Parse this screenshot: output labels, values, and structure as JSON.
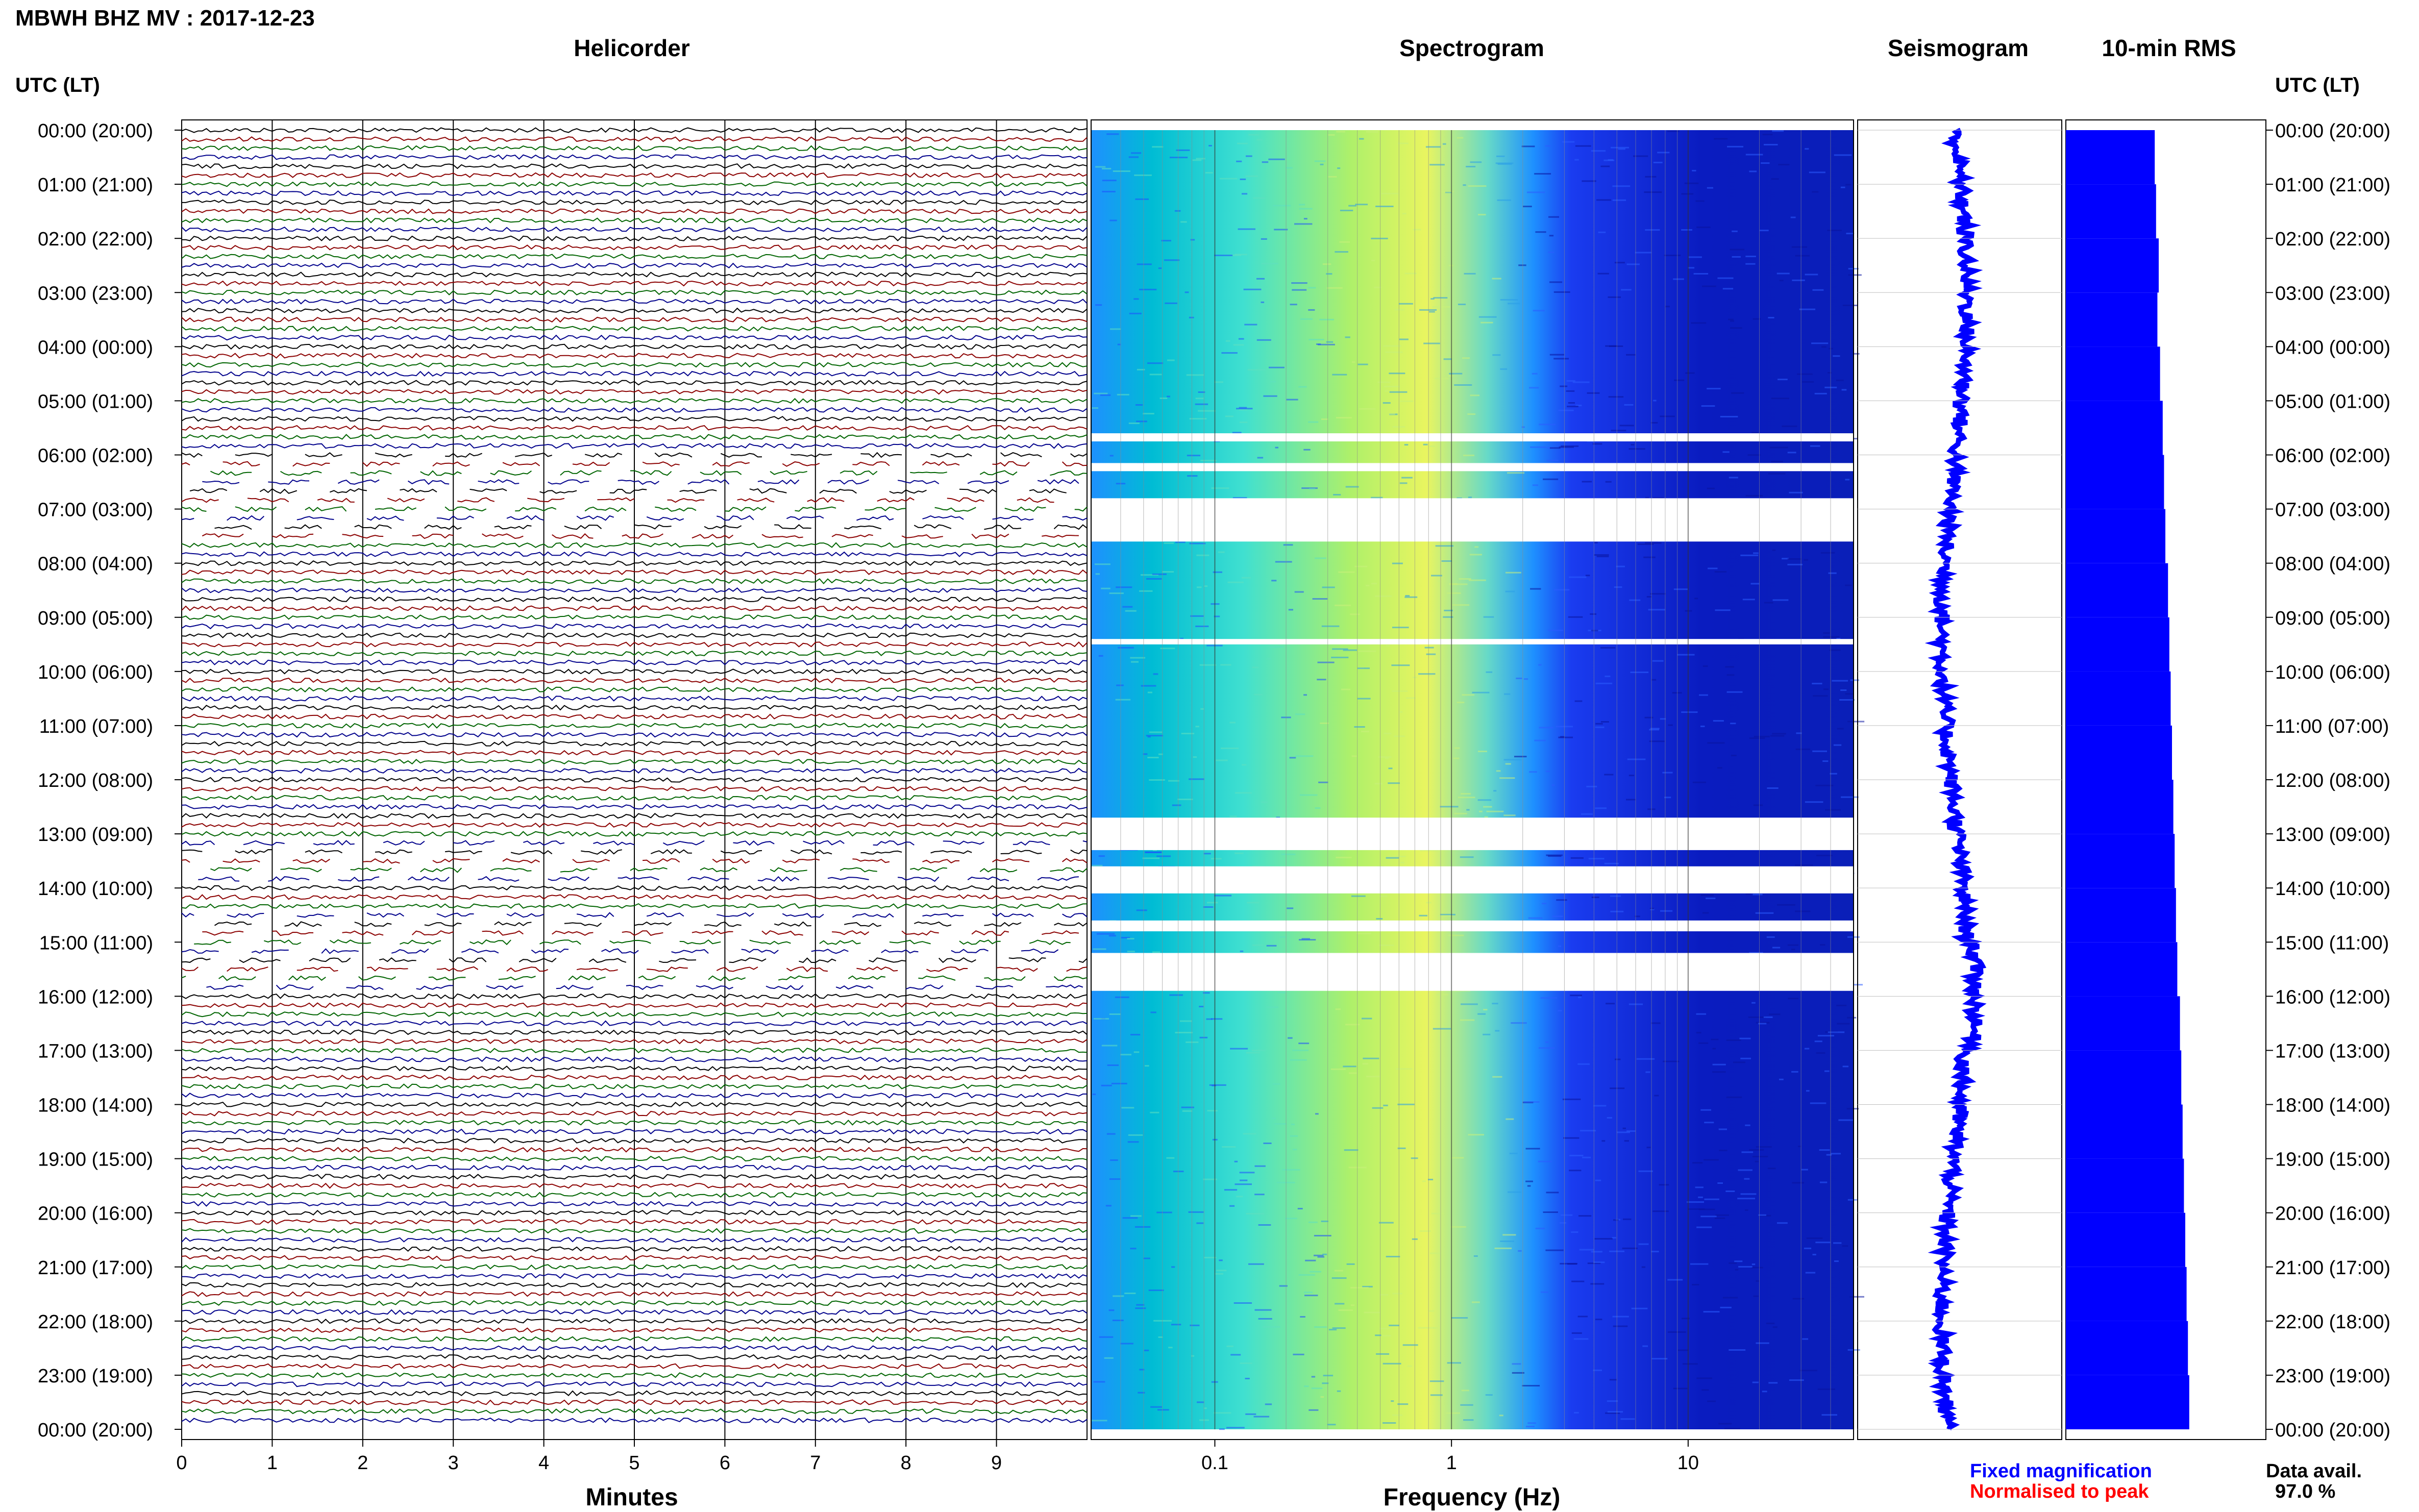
{
  "header": {
    "station_title": "MBWH BHZ MV : 2017-12-23"
  },
  "panels": {
    "helicorder": "Helicorder",
    "spectrogram": "Spectrogram",
    "seismogram": "Seismogram",
    "rms": "10-min RMS"
  },
  "time_axis": {
    "title": "UTC (LT)",
    "labels": [
      "00:00 (20:00)",
      "01:00 (21:00)",
      "02:00 (22:00)",
      "03:00 (23:00)",
      "04:00 (00:00)",
      "05:00 (01:00)",
      "06:00 (02:00)",
      "07:00 (03:00)",
      "08:00 (04:00)",
      "09:00 (05:00)",
      "10:00 (06:00)",
      "11:00 (07:00)",
      "12:00 (08:00)",
      "13:00 (09:00)",
      "14:00 (10:00)",
      "15:00 (11:00)",
      "16:00 (12:00)",
      "17:00 (13:00)",
      "18:00 (14:00)",
      "19:00 (15:00)",
      "20:00 (16:00)",
      "21:00 (17:00)",
      "22:00 (18:00)",
      "23:00 (19:00)",
      "00:00 (20:00)"
    ]
  },
  "helicorder_axis": {
    "xlabel": "Minutes",
    "ticks": [
      "0",
      "1",
      "2",
      "3",
      "4",
      "5",
      "6",
      "7",
      "8",
      "9"
    ]
  },
  "spectrogram_axis": {
    "xlabel": "Frequency (Hz)",
    "ticks": [
      "0.1",
      "1",
      "10"
    ],
    "scale": "log"
  },
  "legend": {
    "fixed": "Fixed magnification",
    "normalised": "Normalised to peak",
    "fixed_color": "#0000ff",
    "normalised_color": "#ff0000"
  },
  "availability": {
    "label": "Data avail.",
    "value": "97.0 %"
  },
  "colors": {
    "trace_cycle": [
      "#000000",
      "#8b0000",
      "#006400",
      "#00008b"
    ],
    "rms_fill": "#0000ff",
    "grid": "#bfbfbf"
  },
  "chart_data": [
    {
      "type": "line",
      "title": "Helicorder",
      "xlabel": "Minutes",
      "xlim": [
        0,
        10
      ],
      "ylabel": "UTC (LT)",
      "rows": 144,
      "row_minutes": 10,
      "trace_colors": [
        "#000000",
        "#8b0000",
        "#006400",
        "#00008b"
      ],
      "gap_hours_utc": [
        [
          6.0,
          7.6
        ],
        [
          13.1,
          14.0
        ],
        [
          14.4,
          16.0
        ]
      ]
    },
    {
      "type": "heatmap",
      "title": "Spectrogram",
      "xlabel": "Frequency (Hz)",
      "x_scale": "log",
      "xlim": [
        0.03,
        50
      ],
      "x_ticks": [
        0.1,
        1,
        10
      ],
      "ylabel": "UTC (LT)",
      "colormap": [
        "#00008b",
        "#0000ff",
        "#1e90ff",
        "#00ced1",
        "#7fffd4",
        "#ffff66"
      ],
      "gap_hours_utc": [
        [
          5.6,
          5.75
        ],
        [
          6.15,
          6.3
        ],
        [
          6.8,
          7.6
        ],
        [
          9.4,
          9.5
        ],
        [
          12.7,
          13.3
        ],
        [
          13.6,
          14.1
        ],
        [
          14.6,
          14.8
        ],
        [
          15.2,
          15.9
        ]
      ]
    },
    {
      "type": "line",
      "title": "Seismogram",
      "ylabel": "UTC (LT)"
    },
    {
      "type": "bar",
      "title": "10-min RMS",
      "orientation": "horizontal",
      "hours_utc": [
        0,
        1,
        2,
        3,
        4,
        5,
        6,
        7,
        8,
        9,
        10,
        11,
        12,
        13,
        14,
        15,
        16,
        17,
        18,
        19,
        20,
        21,
        22,
        23
      ],
      "values_relative": [
        0.67,
        0.68,
        0.7,
        0.69,
        0.71,
        0.73,
        0.74,
        0.75,
        0.77,
        0.78,
        0.79,
        0.8,
        0.81,
        0.82,
        0.83,
        0.84,
        0.86,
        0.87,
        0.88,
        0.89,
        0.9,
        0.91,
        0.92,
        0.93
      ]
    }
  ]
}
